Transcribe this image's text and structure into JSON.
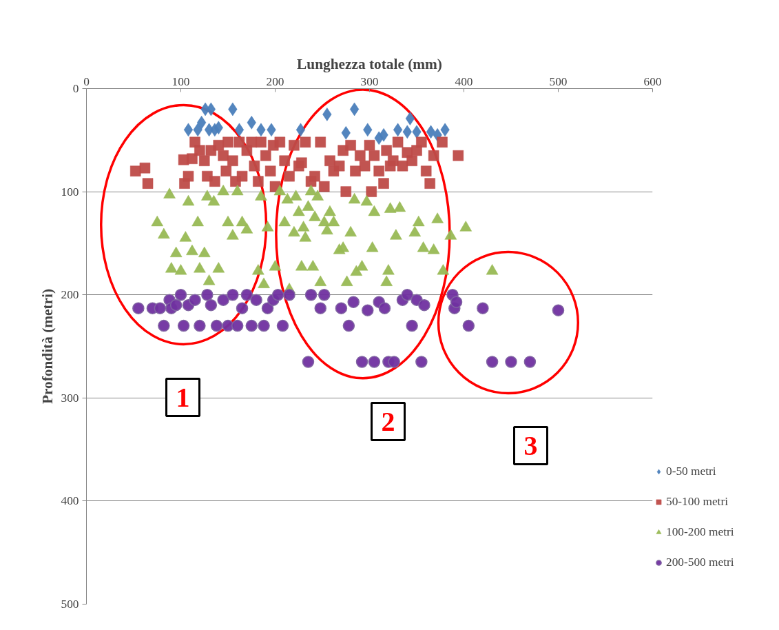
{
  "chart_data": {
    "type": "scatter",
    "xlabel": "Lunghezza totale (mm)",
    "ylabel": "Profondità (metri)",
    "xlim": [
      0,
      600
    ],
    "xticks": [
      0,
      100,
      200,
      300,
      400,
      500,
      600
    ],
    "ylim": [
      500,
      0
    ],
    "yticks": [
      0,
      100,
      200,
      300,
      400,
      500
    ],
    "grid": "y",
    "legend": "right",
    "series": [
      {
        "name": "0-50 metri",
        "color": "#4a7ebb",
        "marker": "diamond",
        "x": [
          108,
          118,
          122,
          126,
          130,
          132,
          136,
          140,
          155,
          162,
          175,
          185,
          196,
          227,
          255,
          275,
          284,
          298,
          310,
          315,
          330,
          340,
          343,
          350,
          365,
          372,
          380
        ],
        "values": [
          40,
          40,
          33,
          20,
          40,
          20,
          40,
          38,
          20,
          40,
          33,
          40,
          40,
          40,
          25,
          43,
          20,
          40,
          48,
          45,
          40,
          42,
          29,
          42,
          42,
          45,
          40
        ]
      },
      {
        "name": "50-100 metri",
        "color": "#be4b48",
        "marker": "square",
        "x": [
          52,
          62,
          65,
          103,
          104,
          108,
          112,
          115,
          120,
          125,
          128,
          132,
          136,
          140,
          145,
          148,
          150,
          155,
          158,
          162,
          165,
          170,
          175,
          178,
          182,
          185,
          190,
          195,
          198,
          200,
          205,
          210,
          215,
          220,
          225,
          228,
          232,
          238,
          242,
          248,
          252,
          258,
          262,
          268,
          272,
          275,
          280,
          285,
          290,
          295,
          300,
          302,
          305,
          310,
          315,
          318,
          322,
          325,
          330,
          335,
          340,
          345,
          350,
          355,
          360,
          364,
          368,
          377,
          394
        ],
        "values": [
          80,
          77,
          92,
          69,
          92,
          85,
          68,
          52,
          60,
          70,
          85,
          60,
          90,
          55,
          65,
          80,
          52,
          70,
          90,
          52,
          85,
          60,
          52,
          75,
          90,
          52,
          65,
          80,
          55,
          95,
          52,
          70,
          85,
          55,
          75,
          72,
          52,
          90,
          85,
          52,
          95,
          70,
          80,
          75,
          60,
          100,
          55,
          80,
          65,
          75,
          55,
          100,
          65,
          80,
          92,
          60,
          75,
          70,
          52,
          75,
          62,
          70,
          60,
          52,
          80,
          92,
          65,
          52,
          65
        ]
      },
      {
        "name": "100-200 metri",
        "color": "#98b954",
        "marker": "triangle",
        "x": [
          75,
          82,
          88,
          90,
          95,
          100,
          105,
          108,
          112,
          118,
          120,
          125,
          128,
          130,
          135,
          140,
          145,
          150,
          155,
          160,
          165,
          170,
          182,
          185,
          188,
          192,
          200,
          205,
          210,
          213,
          215,
          220,
          222,
          225,
          228,
          230,
          232,
          235,
          238,
          240,
          242,
          245,
          248,
          252,
          255,
          258,
          262,
          268,
          272,
          276,
          280,
          284,
          286,
          292,
          297,
          303,
          305,
          318,
          320,
          322,
          328,
          332,
          348,
          352,
          357,
          368,
          372,
          378,
          386,
          402,
          430
        ],
        "values": [
          130,
          142,
          103,
          175,
          160,
          177,
          145,
          110,
          158,
          130,
          175,
          160,
          105,
          187,
          110,
          175,
          100,
          130,
          143,
          100,
          130,
          137,
          177,
          105,
          190,
          135,
          173,
          100,
          130,
          108,
          195,
          140,
          105,
          120,
          173,
          135,
          145,
          115,
          100,
          173,
          125,
          105,
          188,
          130,
          138,
          120,
          130,
          157,
          155,
          188,
          140,
          108,
          178,
          173,
          110,
          155,
          120,
          188,
          177,
          117,
          143,
          116,
          140,
          130,
          155,
          157,
          127,
          177,
          143,
          135,
          177
        ]
      },
      {
        "name": "200-500 metri",
        "color": "#7030a0",
        "marker": "circle",
        "x": [
          55,
          70,
          78,
          82,
          88,
          90,
          95,
          100,
          103,
          108,
          115,
          120,
          128,
          132,
          138,
          145,
          150,
          155,
          160,
          165,
          170,
          175,
          180,
          188,
          192,
          198,
          203,
          208,
          215,
          235,
          238,
          248,
          252,
          270,
          278,
          283,
          292,
          298,
          305,
          310,
          316,
          320,
          326,
          335,
          340,
          345,
          350,
          355,
          358,
          388,
          390,
          392,
          405,
          420,
          430,
          450,
          470,
          500
        ],
        "values": [
          213,
          213,
          213,
          230,
          205,
          213,
          210,
          200,
          230,
          210,
          205,
          230,
          200,
          210,
          230,
          205,
          230,
          200,
          230,
          213,
          200,
          230,
          205,
          230,
          213,
          205,
          200,
          230,
          200,
          265,
          200,
          213,
          200,
          213,
          230,
          207,
          265,
          215,
          265,
          207,
          213,
          265,
          265,
          205,
          200,
          230,
          205,
          265,
          210,
          200,
          213,
          207,
          230,
          213,
          265,
          265,
          265,
          215
        ]
      }
    ],
    "annotations": [
      "1",
      "2",
      "3"
    ]
  }
}
